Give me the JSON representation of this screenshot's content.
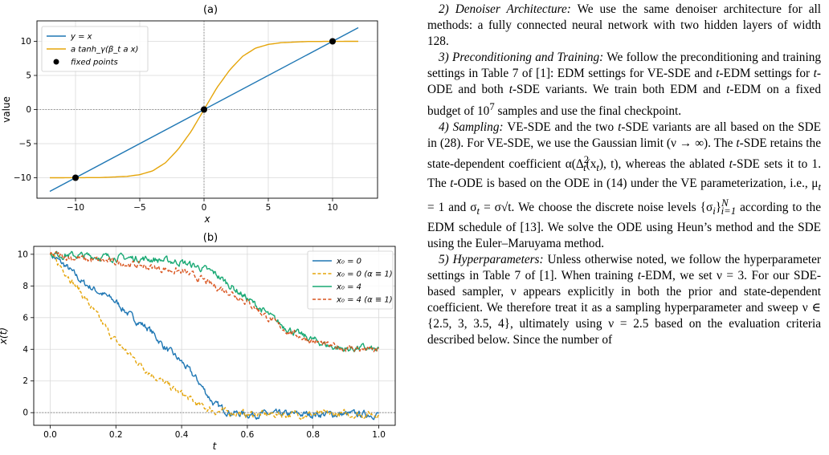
{
  "figure": {
    "panel_a_label": "(a)",
    "panel_b_label": "(b)"
  },
  "chart_data": [
    {
      "type": "line",
      "panel": "(a)",
      "xlabel": "x",
      "ylabel": "value",
      "xlim": [
        -13,
        13.5
      ],
      "ylim": [
        -13,
        13
      ],
      "x_ticks": [
        -10,
        -5,
        0,
        5,
        10
      ],
      "y_ticks": [
        -10,
        -5,
        0,
        5,
        10
      ],
      "grid": true,
      "legend": "top-left",
      "series": [
        {
          "name": "y = x",
          "style": "line",
          "color": "#1f77b4",
          "x": [
            -12,
            12
          ],
          "y": [
            -12,
            12
          ]
        },
        {
          "name": "a tanh_γ(β_t a x)",
          "style": "line",
          "color": "#e5a50a",
          "x": [
            -12,
            -10,
            -8,
            -6,
            -5,
            -4,
            -3,
            -2,
            -1,
            0,
            1,
            2,
            3,
            4,
            5,
            6,
            8,
            10,
            12
          ],
          "y": [
            -10,
            -9.99,
            -9.97,
            -9.8,
            -9.55,
            -9.0,
            -7.8,
            -5.8,
            -3.2,
            0,
            3.2,
            5.8,
            7.8,
            9.0,
            9.55,
            9.8,
            9.97,
            9.99,
            10
          ]
        },
        {
          "name": "fixed points",
          "style": "markers",
          "color": "#000000",
          "x": [
            -10,
            0,
            10
          ],
          "y": [
            -10,
            0,
            10
          ]
        }
      ]
    },
    {
      "type": "line",
      "panel": "(b)",
      "xlabel": "t",
      "ylabel": "x(t)",
      "xlim": [
        -0.05,
        1.05
      ],
      "ylim": [
        -0.8,
        10.5
      ],
      "x_ticks": [
        0.0,
        0.2,
        0.4,
        0.6,
        0.8,
        1.0
      ],
      "y_ticks": [
        0,
        2,
        4,
        6,
        8,
        10
      ],
      "grid": true,
      "legend": "top-right",
      "series": [
        {
          "name": "x₀ = 0",
          "dashed": false,
          "color": "#1f77b4",
          "x": [
            0,
            0.05,
            0.1,
            0.15,
            0.2,
            0.25,
            0.3,
            0.35,
            0.4,
            0.45,
            0.5,
            0.55,
            0.6,
            0.7,
            0.8,
            0.9,
            1.0
          ],
          "y": [
            10,
            9.2,
            8.2,
            7.6,
            7.0,
            6.0,
            5.3,
            4.1,
            3.2,
            2.0,
            0.5,
            0.0,
            -0.1,
            -0.1,
            -0.1,
            -0.1,
            -0.1
          ]
        },
        {
          "name": "x₀ = 0 (α ≡ 1)",
          "dashed": true,
          "color": "#e5a50a",
          "x": [
            0,
            0.05,
            0.1,
            0.15,
            0.2,
            0.25,
            0.3,
            0.35,
            0.4,
            0.45,
            0.5,
            0.6,
            0.7,
            0.8,
            0.9,
            1.0
          ],
          "y": [
            10,
            8.8,
            7.4,
            5.9,
            4.5,
            3.5,
            2.6,
            1.8,
            1.2,
            0.5,
            0.1,
            -0.1,
            -0.1,
            -0.1,
            -0.1,
            -0.1
          ]
        },
        {
          "name": "x₀ = 4",
          "dashed": false,
          "color": "#19a974",
          "x": [
            0,
            0.1,
            0.2,
            0.3,
            0.4,
            0.45,
            0.5,
            0.55,
            0.6,
            0.65,
            0.7,
            0.75,
            0.8,
            0.85,
            0.9,
            0.95,
            1.0
          ],
          "y": [
            10,
            9.9,
            9.8,
            9.7,
            9.5,
            9.2,
            8.8,
            8.0,
            7.2,
            6.4,
            5.6,
            5.0,
            4.6,
            4.2,
            4.0,
            4.1,
            3.9
          ]
        },
        {
          "name": "x₀ = 4 (α ≡ 1)",
          "dashed": true,
          "color": "#d9541e",
          "x": [
            0,
            0.1,
            0.2,
            0.3,
            0.4,
            0.45,
            0.5,
            0.55,
            0.6,
            0.65,
            0.7,
            0.75,
            0.8,
            0.85,
            0.9,
            0.95,
            1.0
          ],
          "y": [
            10,
            9.7,
            9.5,
            9.2,
            8.9,
            8.5,
            8.0,
            7.6,
            7.0,
            6.2,
            5.4,
            4.9,
            4.5,
            4.2,
            4.1,
            4.0,
            3.9
          ]
        }
      ]
    }
  ],
  "text": {
    "p2_head": "2) Denoiser Architecture:",
    "p2_body": " We use the same denoiser architecture for all methods: a fully connected neural network with two hidden layers of width 128.",
    "p3_head": "3) Preconditioning and Training:",
    "p3_body_1": " We follow the preconditioning and training settings in Table 7 of [1]: EDM settings for VE-SDE and ",
    "p3_body_2": "-EDM settings for ",
    "p3_body_3": "-ODE and both ",
    "p3_body_4": "-SDE variants. We train both EDM and ",
    "p3_body_5": "-EDM on a fixed budget of 10",
    "p3_sup": "7",
    "p3_body_6": " samples and use the final checkpoint.",
    "p4_head": "4) Sampling:",
    "p4_body_1": " VE-SDE and the two ",
    "p4_body_2": "-SDE variants are all based on the SDE in (28). For VE-SDE, we use the Gaussian limit (ν → ∞). The ",
    "p4_body_3": "-SDE retains the state-dependent coefficient α(Δ",
    "p4_body_4": "(x",
    "p4_body_5": "), t), whereas the ablated ",
    "p4_body_6": "-SDE sets it to 1. The ",
    "p4_body_7": "-ODE is based on the ODE in (14) under the VE parameterization, i.e., μ",
    "p4_body_8": " = 1 and σ",
    "p4_body_9": " = σ√t. We choose the discrete noise levels {σ",
    "p4_body_10": "}",
    "p4_body_11": " according to the EDM schedule of [13]. We solve the ODE using Heun’s method and the SDE using the Euler–Maruyama method.",
    "p5_head": "5) Hyperparameters:",
    "p5_body_1": " Unless otherwise noted, we follow the hyperparameter settings in Table 7 of [1]. When training ",
    "p5_body_2": "-EDM, we set ν = 3. For our SDE-based sampler, ν appears explicitly in both the prior and state-dependent coefficient. We therefore treat it as a sampling hyperparameter and sweep ν ∈ {2.5, 3, 3.5, 4}, ultimately using ν = 2.5 based on the evaluation criteria described below. Since the number of",
    "t": "t",
    "two": "2",
    "sub_i": "i",
    "sup_N": "N",
    "sub_i1": "i=1"
  }
}
